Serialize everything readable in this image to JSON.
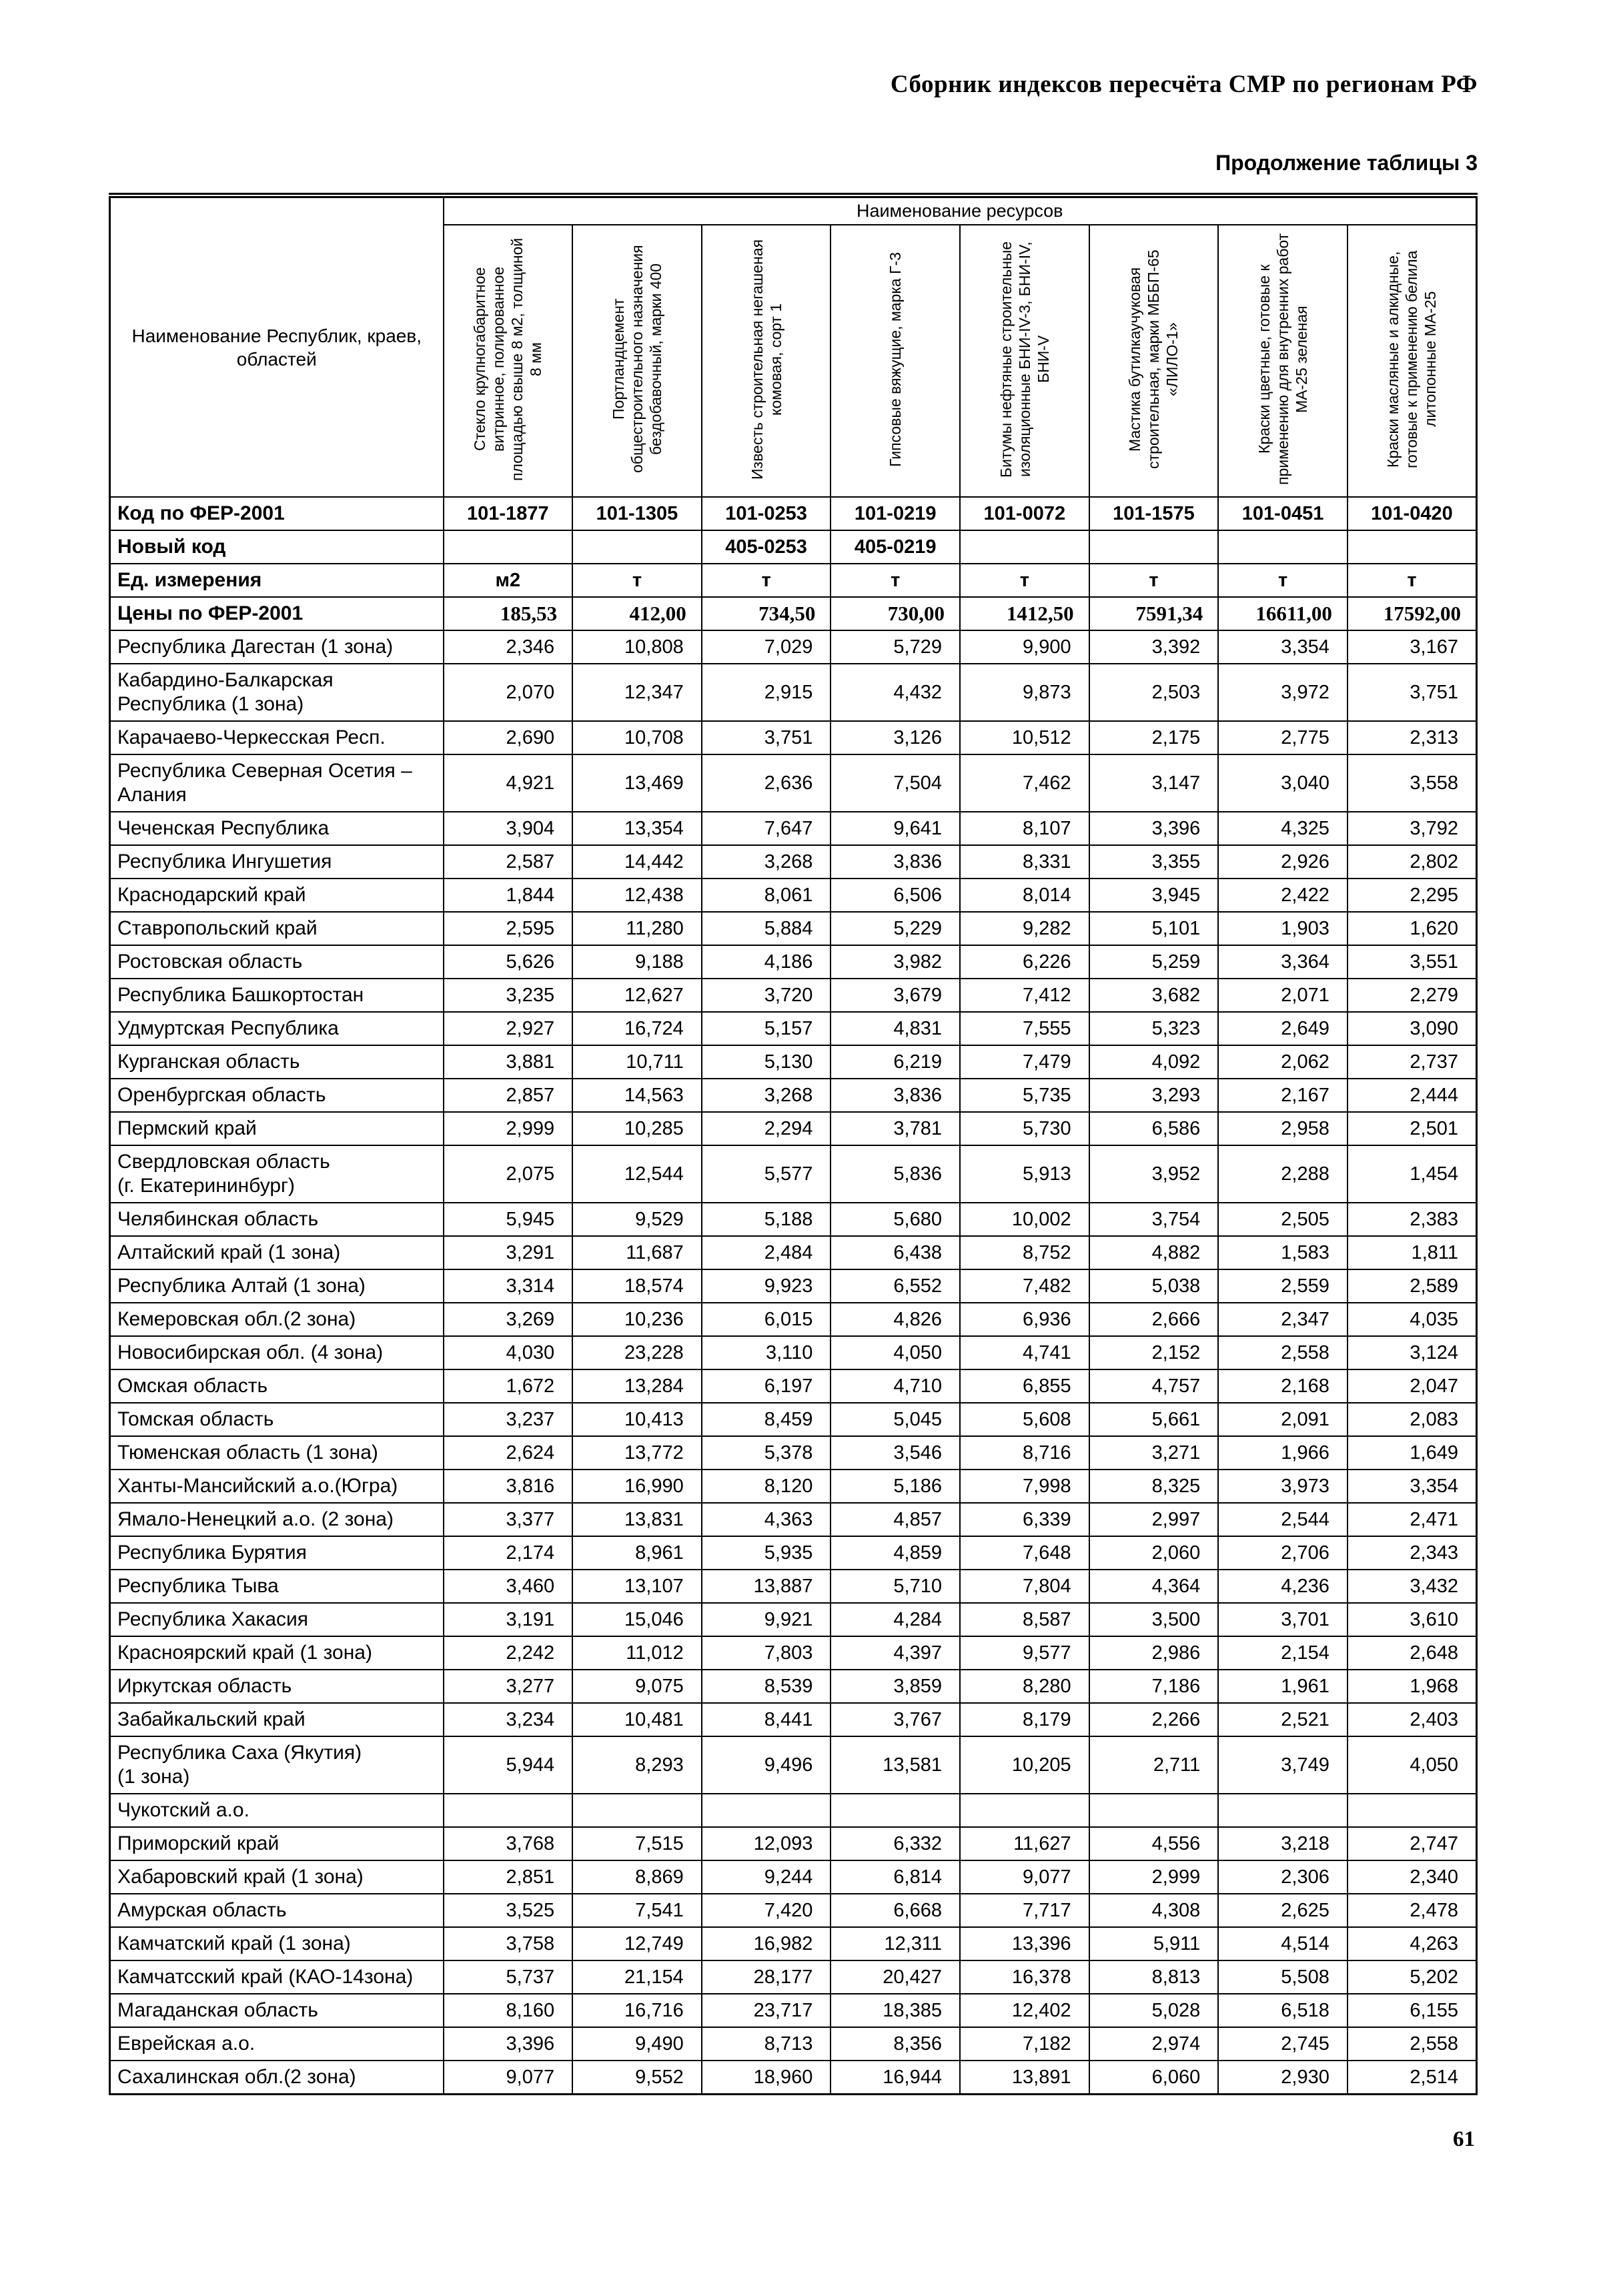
{
  "page": {
    "header": "Сборник индексов пересчёта СМР по регионам РФ",
    "caption": "Продолжение таблицы 3",
    "page_number": "61"
  },
  "table": {
    "corner_header": "Наименование Республик, краев, областей",
    "resources_header": "Наименование ресурсов",
    "columns": [
      "Стекло крупногабаритное витринное, полированное площадью свыше 8 м2, толщиной 8 мм",
      "Портландцемент общестроительного назначения бездобавочный, марки 400",
      "Известь строительная негашеная комовая, сорт 1",
      "Гипсовые вяжущие, марка Г-3",
      "Битумы нефтяные строительные изоляционные БНИ-IV-3, БНИ-IV, БНИ-V",
      "Мастика бутилкаучуковая строительная, марки МББП-65 «ЛИЛО-1»",
      "Краски цветные, готовые к применению для внутренних работ МА-25 зеленая",
      "Краски масляные и алкидные, готовые к применению белила литопонные МА-25"
    ],
    "meta_rows": [
      {
        "label": "Код по ФЕР-2001",
        "values": [
          "101-1877",
          "101-1305",
          "101-0253",
          "101-0219",
          "101-0072",
          "101-1575",
          "101-0451",
          "101-0420"
        ]
      },
      {
        "label": "Новый код",
        "values": [
          "",
          "",
          "405-0253",
          "405-0219",
          "",
          "",
          "",
          ""
        ]
      },
      {
        "label": "Ед. измерения",
        "values": [
          "м2",
          "т",
          "т",
          "т",
          "т",
          "т",
          "т",
          "т"
        ]
      },
      {
        "label": "Цены по ФЕР-2001",
        "values": [
          "185,53",
          "412,00",
          "734,50",
          "730,00",
          "1412,50",
          "7591,34",
          "16611,00",
          "17592,00"
        ]
      }
    ],
    "rows": [
      {
        "label": "Республика Дагестан (1 зона)",
        "values": [
          "2,346",
          "10,808",
          "7,029",
          "5,729",
          "9,900",
          "3,392",
          "3,354",
          "3,167"
        ]
      },
      {
        "label": "Кабардино-Балкарская\nРеспублика (1 зона)",
        "values": [
          "2,070",
          "12,347",
          "2,915",
          "4,432",
          "9,873",
          "2,503",
          "3,972",
          "3,751"
        ]
      },
      {
        "label": "Карачаево-Черкесская Респ.",
        "values": [
          "2,690",
          "10,708",
          "3,751",
          "3,126",
          "10,512",
          "2,175",
          "2,775",
          "2,313"
        ]
      },
      {
        "label": "Республика Северная Осетия –\nАлания",
        "values": [
          "4,921",
          "13,469",
          "2,636",
          "7,504",
          "7,462",
          "3,147",
          "3,040",
          "3,558"
        ]
      },
      {
        "label": "Чеченская Республика",
        "values": [
          "3,904",
          "13,354",
          "7,647",
          "9,641",
          "8,107",
          "3,396",
          "4,325",
          "3,792"
        ]
      },
      {
        "label": "Республика Ингушетия",
        "values": [
          "2,587",
          "14,442",
          "3,268",
          "3,836",
          "8,331",
          "3,355",
          "2,926",
          "2,802"
        ]
      },
      {
        "label": "Краснодарский край",
        "values": [
          "1,844",
          "12,438",
          "8,061",
          "6,506",
          "8,014",
          "3,945",
          "2,422",
          "2,295"
        ]
      },
      {
        "label": "Ставропольский край",
        "values": [
          "2,595",
          "11,280",
          "5,884",
          "5,229",
          "9,282",
          "5,101",
          "1,903",
          "1,620"
        ]
      },
      {
        "label": "Ростовская область",
        "values": [
          "5,626",
          "9,188",
          "4,186",
          "3,982",
          "6,226",
          "5,259",
          "3,364",
          "3,551"
        ]
      },
      {
        "label": "Республика Башкортостан",
        "values": [
          "3,235",
          "12,627",
          "3,720",
          "3,679",
          "7,412",
          "3,682",
          "2,071",
          "2,279"
        ]
      },
      {
        "label": "Удмуртская Республика",
        "values": [
          "2,927",
          "16,724",
          "5,157",
          "4,831",
          "7,555",
          "5,323",
          "2,649",
          "3,090"
        ]
      },
      {
        "label": "Курганская область",
        "values": [
          "3,881",
          "10,711",
          "5,130",
          "6,219",
          "7,479",
          "4,092",
          "2,062",
          "2,737"
        ]
      },
      {
        "label": "Оренбургская область",
        "values": [
          "2,857",
          "14,563",
          "3,268",
          "3,836",
          "5,735",
          "3,293",
          "2,167",
          "2,444"
        ]
      },
      {
        "label": "Пермский край",
        "values": [
          "2,999",
          "10,285",
          "2,294",
          "3,781",
          "5,730",
          "6,586",
          "2,958",
          "2,501"
        ]
      },
      {
        "label": "Свердловская область\n(г. Екатерининбург)",
        "values": [
          "2,075",
          "12,544",
          "5,577",
          "5,836",
          "5,913",
          "3,952",
          "2,288",
          "1,454"
        ]
      },
      {
        "label": "Челябинская область",
        "values": [
          "5,945",
          "9,529",
          "5,188",
          "5,680",
          "10,002",
          "3,754",
          "2,505",
          "2,383"
        ]
      },
      {
        "label": "Алтайский край (1 зона)",
        "values": [
          "3,291",
          "11,687",
          "2,484",
          "6,438",
          "8,752",
          "4,882",
          "1,583",
          "1,811"
        ]
      },
      {
        "label": "Республика Алтай (1 зона)",
        "values": [
          "3,314",
          "18,574",
          "9,923",
          "6,552",
          "7,482",
          "5,038",
          "2,559",
          "2,589"
        ]
      },
      {
        "label": "Кемеровская обл.(2 зона)",
        "values": [
          "3,269",
          "10,236",
          "6,015",
          "4,826",
          "6,936",
          "2,666",
          "2,347",
          "4,035"
        ]
      },
      {
        "label": "Новосибирская обл. (4 зона)",
        "values": [
          "4,030",
          "23,228",
          "3,110",
          "4,050",
          "4,741",
          "2,152",
          "2,558",
          "3,124"
        ]
      },
      {
        "label": "Омская область",
        "values": [
          "1,672",
          "13,284",
          "6,197",
          "4,710",
          "6,855",
          "4,757",
          "2,168",
          "2,047"
        ]
      },
      {
        "label": "Томская область",
        "values": [
          "3,237",
          "10,413",
          "8,459",
          "5,045",
          "5,608",
          "5,661",
          "2,091",
          "2,083"
        ]
      },
      {
        "label": "Тюменская область (1 зона)",
        "values": [
          "2,624",
          "13,772",
          "5,378",
          "3,546",
          "8,716",
          "3,271",
          "1,966",
          "1,649"
        ]
      },
      {
        "label": "Ханты-Мансийский а.о.(Югра)",
        "values": [
          "3,816",
          "16,990",
          "8,120",
          "5,186",
          "7,998",
          "8,325",
          "3,973",
          "3,354"
        ]
      },
      {
        "label": "Ямало-Ненецкий а.о. (2 зона)",
        "values": [
          "3,377",
          "13,831",
          "4,363",
          "4,857",
          "6,339",
          "2,997",
          "2,544",
          "2,471"
        ]
      },
      {
        "label": "Республика Бурятия",
        "values": [
          "2,174",
          "8,961",
          "5,935",
          "4,859",
          "7,648",
          "2,060",
          "2,706",
          "2,343"
        ]
      },
      {
        "label": "Республика Тыва",
        "values": [
          "3,460",
          "13,107",
          "13,887",
          "5,710",
          "7,804",
          "4,364",
          "4,236",
          "3,432"
        ]
      },
      {
        "label": "Республика Хакасия",
        "values": [
          "3,191",
          "15,046",
          "9,921",
          "4,284",
          "8,587",
          "3,500",
          "3,701",
          "3,610"
        ]
      },
      {
        "label": "Красноярский край (1 зона)",
        "values": [
          "2,242",
          "11,012",
          "7,803",
          "4,397",
          "9,577",
          "2,986",
          "2,154",
          "2,648"
        ]
      },
      {
        "label": "Иркутская область",
        "values": [
          "3,277",
          "9,075",
          "8,539",
          "3,859",
          "8,280",
          "7,186",
          "1,961",
          "1,968"
        ]
      },
      {
        "label": "Забайкальский край",
        "values": [
          "3,234",
          "10,481",
          "8,441",
          "3,767",
          "8,179",
          "2,266",
          "2,521",
          "2,403"
        ]
      },
      {
        "label": "Республика Саха (Якутия)\n(1 зона)",
        "values": [
          "5,944",
          "8,293",
          "9,496",
          "13,581",
          "10,205",
          "2,711",
          "3,749",
          "4,050"
        ]
      },
      {
        "label": "Чукотский а.о.",
        "values": [
          "",
          "",
          "",
          "",
          "",
          "",
          "",
          ""
        ]
      },
      {
        "label": "Приморский край",
        "values": [
          "3,768",
          "7,515",
          "12,093",
          "6,332",
          "11,627",
          "4,556",
          "3,218",
          "2,747"
        ]
      },
      {
        "label": "Хабаровский край (1 зона)",
        "values": [
          "2,851",
          "8,869",
          "9,244",
          "6,814",
          "9,077",
          "2,999",
          "2,306",
          "2,340"
        ]
      },
      {
        "label": "Амурская область",
        "values": [
          "3,525",
          "7,541",
          "7,420",
          "6,668",
          "7,717",
          "4,308",
          "2,625",
          "2,478"
        ]
      },
      {
        "label": "Камчатский край (1 зона)",
        "values": [
          "3,758",
          "12,749",
          "16,982",
          "12,311",
          "13,396",
          "5,911",
          "4,514",
          "4,263"
        ]
      },
      {
        "label": "Камчатсский край (КАО-14зона)",
        "values": [
          "5,737",
          "21,154",
          "28,177",
          "20,427",
          "16,378",
          "8,813",
          "5,508",
          "5,202"
        ]
      },
      {
        "label": "Магаданская область",
        "values": [
          "8,160",
          "16,716",
          "23,717",
          "18,385",
          "12,402",
          "5,028",
          "6,518",
          "6,155"
        ]
      },
      {
        "label": "Еврейская а.о.",
        "values": [
          "3,396",
          "9,490",
          "8,713",
          "8,356",
          "7,182",
          "2,974",
          "2,745",
          "2,558"
        ]
      },
      {
        "label": "Сахалинская обл.(2 зона)",
        "values": [
          "9,077",
          "9,552",
          "18,960",
          "16,944",
          "13,891",
          "6,060",
          "2,930",
          "2,514"
        ]
      }
    ]
  }
}
